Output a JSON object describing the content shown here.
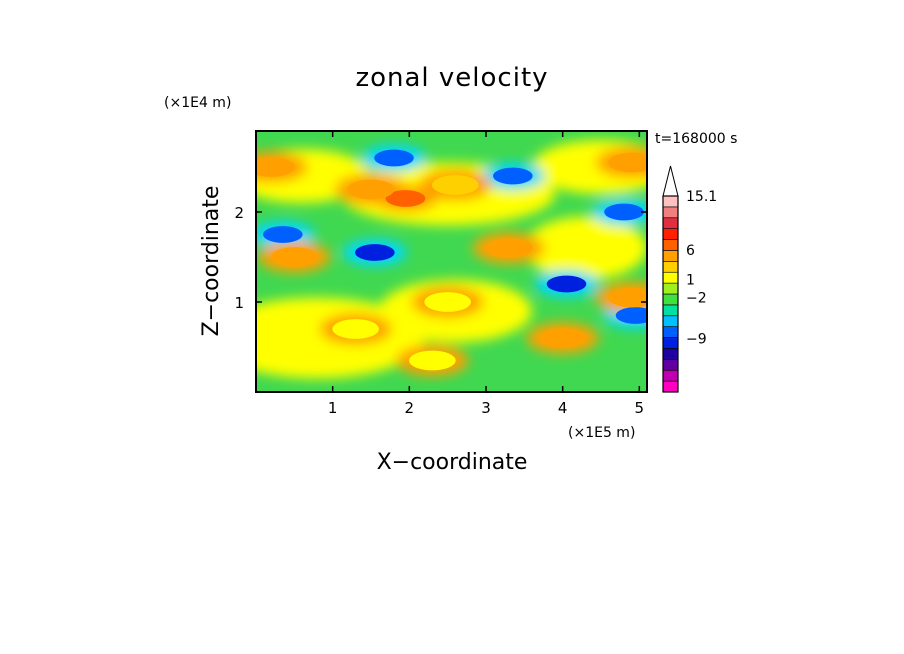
{
  "chart_data": {
    "type": "heatmap",
    "title": "zonal velocity",
    "xlabel": "X−coordinate",
    "ylabel": "Z−coordinate",
    "x_unit": "(×1E5 m)",
    "y_unit": "(×1E4 m)",
    "time_label": "t=168000 s",
    "xlim": [
      0,
      5.1
    ],
    "ylim": [
      0,
      2.9
    ],
    "x_ticks": [
      1,
      2,
      3,
      4,
      5
    ],
    "x_tick_labels": [
      "1",
      "2",
      "3",
      "4",
      "5"
    ],
    "y_ticks": [
      1,
      2
    ],
    "y_tick_labels": [
      "1",
      "2"
    ],
    "colorbar": {
      "levels": [
        -15,
        -12,
        -9,
        -6,
        -4,
        -2,
        -1,
        0,
        1,
        2,
        4,
        6,
        9,
        12,
        15.1
      ],
      "labeled_levels": [
        15.1,
        6,
        1,
        -2,
        -9
      ],
      "labels": [
        "15.1",
        "6",
        "1",
        "−2",
        "−9"
      ],
      "colors": [
        "#ff00c0",
        "#c000b0",
        "#6000a0",
        "#2000a0",
        "#0020e0",
        "#0060ff",
        "#00c0ff",
        "#00e0a0",
        "#40e040",
        "#a0f020",
        "#ffff00",
        "#ffd000",
        "#ffa000",
        "#ff6000",
        "#ff2000",
        "#e03040",
        "#f08080",
        "#ffc0c0"
      ],
      "extend": "max"
    },
    "features": [
      {
        "x": 1.8,
        "z": 2.6,
        "value": -6
      },
      {
        "x": 1.55,
        "z": 1.55,
        "value": -9
      },
      {
        "x": 0.35,
        "z": 1.75,
        "value": -6
      },
      {
        "x": 3.35,
        "z": 2.4,
        "value": -6
      },
      {
        "x": 4.05,
        "z": 1.2,
        "value": -9
      },
      {
        "x": 4.8,
        "z": 2.0,
        "value": -6
      },
      {
        "x": 4.95,
        "z": 0.85,
        "value": -6
      },
      {
        "x": 1.95,
        "z": 2.15,
        "value": 6
      },
      {
        "x": 1.5,
        "z": 2.25,
        "value": 4
      },
      {
        "x": 3.3,
        "z": 1.6,
        "value": 4
      },
      {
        "x": 4.0,
        "z": 0.6,
        "value": 4
      },
      {
        "x": 4.9,
        "z": 1.05,
        "value": 4
      },
      {
        "x": 4.9,
        "z": 2.55,
        "value": 4
      },
      {
        "x": 0.2,
        "z": 2.5,
        "value": 4
      },
      {
        "x": 0.5,
        "z": 1.5,
        "value": 4
      },
      {
        "x": 2.6,
        "z": 2.3,
        "value": 2
      },
      {
        "x": 1.3,
        "z": 0.7,
        "value": 1
      },
      {
        "x": 2.5,
        "z": 1.0,
        "value": 1
      },
      {
        "x": 2.3,
        "z": 0.35,
        "value": 1
      }
    ]
  }
}
